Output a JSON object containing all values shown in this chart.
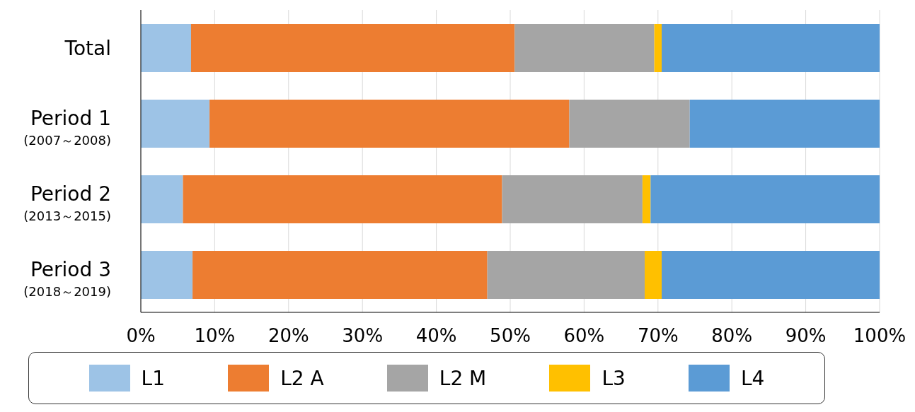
{
  "chart_data": {
    "type": "bar",
    "orientation": "horizontal",
    "stacked": true,
    "categories": [
      "Total",
      "Period 1\n(2007～2008)",
      "Period 2\n(2013～2015)",
      "Period 3\n(2018～2019)"
    ],
    "series": [
      {
        "name": "L1",
        "color": "#9dc3e6",
        "values": [
          6.8,
          9.3,
          5.7,
          7.0
        ]
      },
      {
        "name": "L2 A",
        "color": "#ed7d31",
        "values": [
          43.8,
          48.7,
          43.2,
          39.9
        ]
      },
      {
        "name": "L2 M",
        "color": "#a5a5a5",
        "values": [
          18.9,
          16.3,
          19.0,
          21.3
        ]
      },
      {
        "name": "L3",
        "color": "#ffc000",
        "values": [
          1.0,
          0,
          1.1,
          2.3
        ]
      },
      {
        "name": "L4",
        "color": "#5b9bd5",
        "values": [
          29.5,
          25.7,
          31.0,
          29.5
        ]
      }
    ],
    "xlim": [
      0,
      100
    ],
    "xticks": [
      {
        "value": 0,
        "label": "0%"
      },
      {
        "value": 10,
        "label": "10%"
      },
      {
        "value": 20,
        "label": "20%"
      },
      {
        "value": 30,
        "label": "30%"
      },
      {
        "value": 40,
        "label": "40%"
      },
      {
        "value": 50,
        "label": "50%"
      },
      {
        "value": 60,
        "label": "60%"
      },
      {
        "value": 70,
        "label": "70%"
      },
      {
        "value": 80,
        "label": "80%"
      },
      {
        "value": 90,
        "label": "90%"
      },
      {
        "value": 100,
        "label": "100%"
      }
    ],
    "grid": "x",
    "legend": "bottom"
  }
}
